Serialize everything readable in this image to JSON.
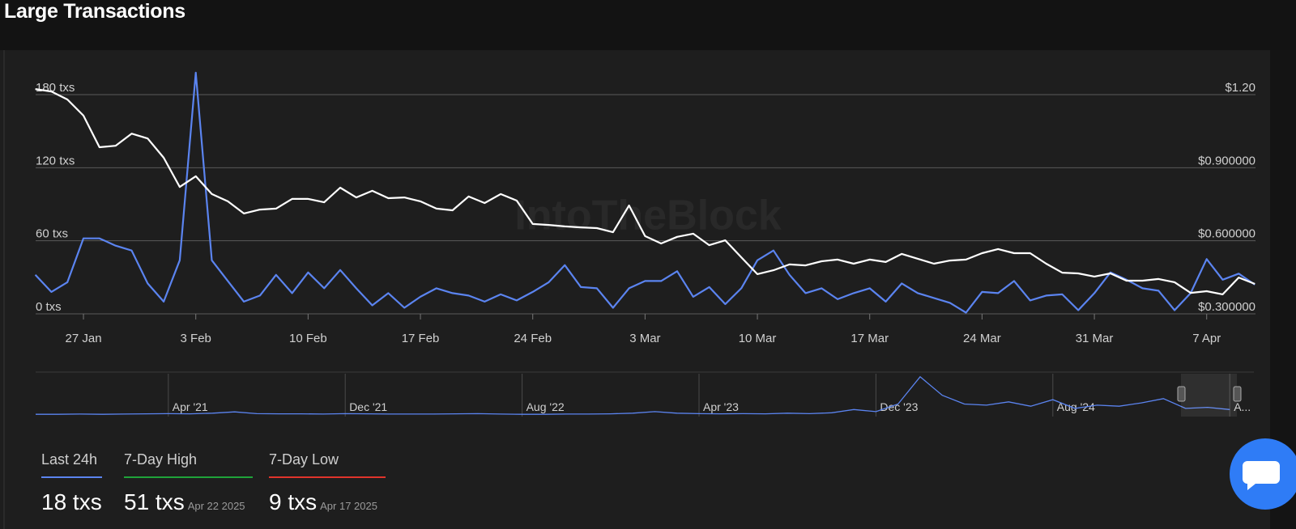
{
  "title": "Large Transactions",
  "watermark": "IntoTheBlock",
  "chart_data": [
    {
      "type": "line",
      "categories": [
        null,
        null,
        null,
        "27 Jan",
        null,
        null,
        null,
        null,
        null,
        null,
        "3 Feb",
        null,
        null,
        null,
        null,
        null,
        null,
        "10 Feb",
        null,
        null,
        null,
        null,
        null,
        null,
        "17 Feb",
        null,
        null,
        null,
        null,
        null,
        null,
        "24 Feb",
        null,
        null,
        null,
        null,
        null,
        null,
        "3 Mar",
        null,
        null,
        null,
        null,
        null,
        null,
        "10 Mar",
        null,
        null,
        null,
        null,
        null,
        null,
        "17 Mar",
        null,
        null,
        null,
        null,
        null,
        null,
        "24 Mar",
        null,
        null,
        null,
        null,
        null,
        null,
        "31 Mar",
        null,
        null,
        null,
        null,
        null,
        null,
        "7 Apr",
        null,
        null,
        null
      ],
      "series": [
        {
          "color": "#5b84f0",
          "values": [
            32,
            18,
            26,
            62,
            62,
            56,
            52,
            25,
            10,
            44,
            198,
            44,
            27,
            10,
            15,
            32,
            17,
            34,
            21,
            36,
            21,
            7,
            17,
            5,
            14,
            21,
            17,
            15,
            10,
            16,
            11,
            18,
            26,
            40,
            22,
            21,
            5,
            21,
            27,
            27,
            35,
            14,
            22,
            8,
            21,
            44,
            52,
            32,
            17,
            21,
            12,
            17,
            21,
            10,
            25,
            17,
            13,
            9,
            1,
            18,
            17,
            27,
            11,
            15,
            16,
            3,
            17,
            34,
            28,
            21,
            19,
            3,
            17,
            45,
            28,
            33,
            24
          ]
        },
        {
          "color": "#ffffff",
          "axis": "y2",
          "values": [
            1.223,
            1.213,
            1.18,
            1.114,
            0.984,
            0.99,
            1.04,
            1.02,
            0.941,
            0.821,
            0.865,
            0.792,
            0.762,
            0.712,
            0.728,
            0.732,
            0.772,
            0.772,
            0.758,
            0.818,
            0.778,
            0.805,
            0.775,
            0.778,
            0.762,
            0.732,
            0.725,
            0.782,
            0.755,
            0.792,
            0.765,
            0.669,
            0.665,
            0.659,
            0.655,
            0.652,
            0.635,
            0.745,
            0.619,
            0.589,
            0.616,
            0.629,
            0.582,
            0.602,
            0.532,
            0.463,
            0.479,
            0.503,
            0.499,
            0.516,
            0.523,
            0.506,
            0.523,
            0.513,
            0.546,
            0.526,
            0.506,
            0.519,
            0.523,
            0.549,
            0.566,
            0.549,
            0.549,
            0.506,
            0.469,
            0.466,
            0.453,
            0.466,
            0.436,
            0.436,
            0.443,
            0.43,
            0.386,
            0.393,
            0.38,
            0.449,
            0.423
          ]
        }
      ],
      "ylim": [
        0,
        180
      ],
      "yticks": [
        {
          "value": 0,
          "label": "0 txs"
        },
        {
          "value": 60,
          "label": "60 txs"
        },
        {
          "value": 120,
          "label": "120 txs"
        },
        {
          "value": 180,
          "label": "180 txs"
        }
      ],
      "y2lim": [
        0.3,
        1.2
      ],
      "y2ticks": [
        {
          "value": 0.3,
          "label": "$0.300000"
        },
        {
          "value": 0.6,
          "label": "$0.600000"
        },
        {
          "value": 0.9,
          "label": "$0.900000"
        },
        {
          "value": 1.2,
          "label": "$1.20"
        }
      ],
      "grid": true
    },
    {
      "type": "line",
      "categories": [
        null,
        null,
        null,
        null,
        null,
        null,
        "Apr '21",
        null,
        null,
        null,
        null,
        null,
        null,
        null,
        "Dec '21",
        null,
        null,
        null,
        null,
        null,
        null,
        null,
        "Aug '22",
        null,
        null,
        null,
        null,
        null,
        null,
        null,
        "Apr '23",
        null,
        null,
        null,
        null,
        null,
        null,
        null,
        "Dec '23",
        null,
        null,
        null,
        null,
        null,
        null,
        null,
        "Aug '24",
        null,
        null,
        null,
        null,
        null,
        null,
        null,
        "A..."
      ],
      "series": [
        {
          "color": "#5b84f0",
          "values": [
            3,
            3,
            4,
            3,
            4,
            5,
            6,
            5,
            8,
            14,
            6,
            5,
            5,
            4,
            6,
            5,
            4,
            4,
            4,
            5,
            6,
            4,
            3,
            3,
            4,
            4,
            5,
            8,
            15,
            8,
            6,
            5,
            6,
            5,
            8,
            6,
            10,
            25,
            15,
            50,
            175,
            90,
            50,
            45,
            60,
            40,
            70,
            30,
            45,
            40,
            55,
            75,
            30,
            35,
            25
          ]
        }
      ]
    }
  ],
  "stats": [
    {
      "label": "Last 24h",
      "value": "18 txs",
      "color": "#5b84f0"
    },
    {
      "label": "7-Day High",
      "value": "51 txs",
      "date": "Apr 22 2025",
      "color": "#1fa33a"
    },
    {
      "label": "7-Day Low",
      "value": "9 txs",
      "date": "Apr 17 2025",
      "color": "#e0342b"
    }
  ]
}
